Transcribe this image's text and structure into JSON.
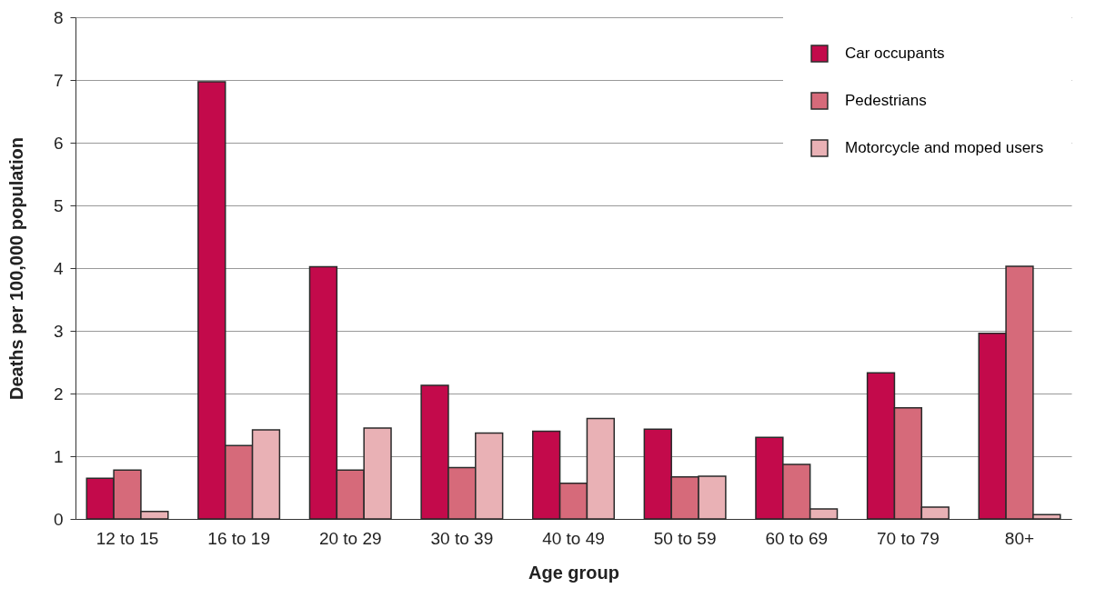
{
  "chart_data": {
    "type": "bar",
    "xlabel": "Age group",
    "ylabel": "Deaths per 100,000 population",
    "categories": [
      "12 to 15",
      "16 to 19",
      "20 to 29",
      "30 to 39",
      "40 to 49",
      "50 to 59",
      "60 to 69",
      "70 to 79",
      "80+"
    ],
    "series": [
      {
        "name": "Car occupants",
        "color": "#c30a4b",
        "values": [
          0.65,
          6.97,
          4.02,
          2.13,
          1.4,
          1.43,
          1.3,
          2.33,
          2.96
        ]
      },
      {
        "name": "Pedestrians",
        "color": "#d66a7a",
        "values": [
          0.78,
          1.17,
          0.78,
          0.82,
          0.57,
          0.67,
          0.87,
          1.77,
          4.03
        ]
      },
      {
        "name": "Motorcycle and moped users",
        "color": "#e9b1b5",
        "values": [
          0.12,
          1.42,
          1.45,
          1.37,
          1.6,
          0.68,
          0.16,
          0.19,
          0.07
        ]
      }
    ],
    "ylim": [
      0,
      8
    ],
    "yticks": [
      0,
      1,
      2,
      3,
      4,
      5,
      6,
      7,
      8
    ],
    "grid": "y",
    "legend": "top right"
  }
}
